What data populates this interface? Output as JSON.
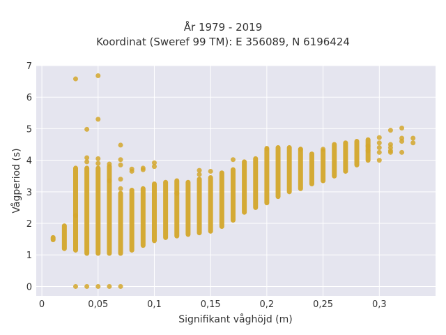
{
  "chart_data": {
    "type": "scatter",
    "title": "År 1979 - 2019",
    "subtitle": "Koordinat (Sweref 99 TM): E 356089, N 6196424",
    "xlabel": "Signifikant våghöjd (m)",
    "ylabel": "Vågperiod (s)",
    "xlim": [
      -0.005,
      0.35
    ],
    "ylim": [
      -0.3,
      7.0
    ],
    "xticks": [
      0,
      0.05,
      0.1,
      0.15,
      0.2,
      0.25,
      0.3
    ],
    "xtick_labels": [
      "0",
      "0,05",
      "0,1",
      "0,15",
      "0,2",
      "0,25",
      "0,3"
    ],
    "yticks": [
      0,
      1,
      2,
      3,
      4,
      5,
      6,
      7
    ],
    "ytick_labels": [
      "0",
      "1",
      "2",
      "3",
      "4",
      "5",
      "6",
      "7"
    ],
    "grid": true,
    "marker_color": "#d4a72c",
    "background": "#e5e5ef",
    "columns": [
      {
        "x": 0.01,
        "ymin": 1.48,
        "ymax": 1.55
      },
      {
        "x": 0.02,
        "ymin": 1.2,
        "ymax": 1.92
      },
      {
        "x": 0.03,
        "ymin": 1.15,
        "ymax": 3.75
      },
      {
        "x": 0.04,
        "ymin": 1.05,
        "ymax": 3.75
      },
      {
        "x": 0.05,
        "ymin": 1.05,
        "ymax": 3.75
      },
      {
        "x": 0.06,
        "ymin": 1.05,
        "ymax": 3.8
      },
      {
        "x": 0.07,
        "ymin": 1.05,
        "ymax": 2.95
      },
      {
        "x": 0.08,
        "ymin": 1.15,
        "ymax": 3.05
      },
      {
        "x": 0.09,
        "ymin": 1.3,
        "ymax": 3.1
      },
      {
        "x": 0.1,
        "ymin": 1.45,
        "ymax": 3.25
      },
      {
        "x": 0.11,
        "ymin": 1.55,
        "ymax": 3.3
      },
      {
        "x": 0.12,
        "ymin": 1.6,
        "ymax": 3.35
      },
      {
        "x": 0.13,
        "ymin": 1.65,
        "ymax": 3.3
      },
      {
        "x": 0.14,
        "ymin": 1.7,
        "ymax": 3.4
      },
      {
        "x": 0.15,
        "ymin": 1.75,
        "ymax": 3.45
      },
      {
        "x": 0.16,
        "ymin": 1.9,
        "ymax": 3.6
      },
      {
        "x": 0.17,
        "ymin": 2.1,
        "ymax": 3.7
      },
      {
        "x": 0.18,
        "ymin": 2.35,
        "ymax": 3.95
      },
      {
        "x": 0.19,
        "ymin": 2.5,
        "ymax": 4.05
      },
      {
        "x": 0.2,
        "ymin": 2.65,
        "ymax": 4.35
      },
      {
        "x": 0.21,
        "ymin": 2.85,
        "ymax": 4.4
      },
      {
        "x": 0.22,
        "ymin": 3.0,
        "ymax": 4.4
      },
      {
        "x": 0.23,
        "ymin": 3.1,
        "ymax": 4.35
      },
      {
        "x": 0.24,
        "ymin": 3.25,
        "ymax": 4.2
      },
      {
        "x": 0.25,
        "ymin": 3.35,
        "ymax": 4.3
      },
      {
        "x": 0.26,
        "ymin": 3.5,
        "ymax": 4.5
      },
      {
        "x": 0.27,
        "ymin": 3.65,
        "ymax": 4.55
      },
      {
        "x": 0.28,
        "ymin": 3.85,
        "ymax": 4.6
      },
      {
        "x": 0.29,
        "ymin": 4.0,
        "ymax": 4.65
      }
    ],
    "points": [
      {
        "x": 0.03,
        "y": 6.58
      },
      {
        "x": 0.05,
        "y": 6.68
      },
      {
        "x": 0.05,
        "y": 5.3
      },
      {
        "x": 0.04,
        "y": 4.98
      },
      {
        "x": 0.07,
        "y": 4.48
      },
      {
        "x": 0.03,
        "y": 0.0
      },
      {
        "x": 0.04,
        "y": 0.0
      },
      {
        "x": 0.05,
        "y": 0.0
      },
      {
        "x": 0.06,
        "y": 0.0
      },
      {
        "x": 0.07,
        "y": 0.0
      },
      {
        "x": 0.03,
        "y": 2.25
      },
      {
        "x": 0.04,
        "y": 4.08
      },
      {
        "x": 0.04,
        "y": 3.95
      },
      {
        "x": 0.05,
        "y": 4.05
      },
      {
        "x": 0.05,
        "y": 3.9
      },
      {
        "x": 0.06,
        "y": 3.88
      },
      {
        "x": 0.07,
        "y": 4.02
      },
      {
        "x": 0.07,
        "y": 3.85
      },
      {
        "x": 0.07,
        "y": 3.4
      },
      {
        "x": 0.07,
        "y": 3.1
      },
      {
        "x": 0.06,
        "y": 3.35
      },
      {
        "x": 0.08,
        "y": 3.72
      },
      {
        "x": 0.08,
        "y": 3.65
      },
      {
        "x": 0.09,
        "y": 3.75
      },
      {
        "x": 0.09,
        "y": 3.7
      },
      {
        "x": 0.1,
        "y": 3.92
      },
      {
        "x": 0.1,
        "y": 3.8
      },
      {
        "x": 0.12,
        "y": 2.95
      },
      {
        "x": 0.14,
        "y": 3.68
      },
      {
        "x": 0.14,
        "y": 3.55
      },
      {
        "x": 0.15,
        "y": 3.65
      },
      {
        "x": 0.17,
        "y": 4.02
      },
      {
        "x": 0.3,
        "y": 4.0
      },
      {
        "x": 0.3,
        "y": 4.25
      },
      {
        "x": 0.3,
        "y": 4.4
      },
      {
        "x": 0.3,
        "y": 4.55
      },
      {
        "x": 0.3,
        "y": 4.72
      },
      {
        "x": 0.29,
        "y": 4.3
      },
      {
        "x": 0.29,
        "y": 4.45
      },
      {
        "x": 0.31,
        "y": 4.95
      },
      {
        "x": 0.31,
        "y": 4.5
      },
      {
        "x": 0.31,
        "y": 4.4
      },
      {
        "x": 0.31,
        "y": 4.3
      },
      {
        "x": 0.31,
        "y": 4.25
      },
      {
        "x": 0.32,
        "y": 5.02
      },
      {
        "x": 0.32,
        "y": 4.7
      },
      {
        "x": 0.32,
        "y": 4.6
      },
      {
        "x": 0.32,
        "y": 4.25
      },
      {
        "x": 0.33,
        "y": 4.7
      },
      {
        "x": 0.33,
        "y": 4.55
      },
      {
        "x": 0.25,
        "y": 4.35
      },
      {
        "x": 0.23,
        "y": 4.35
      },
      {
        "x": 0.2,
        "y": 4.38
      }
    ]
  }
}
